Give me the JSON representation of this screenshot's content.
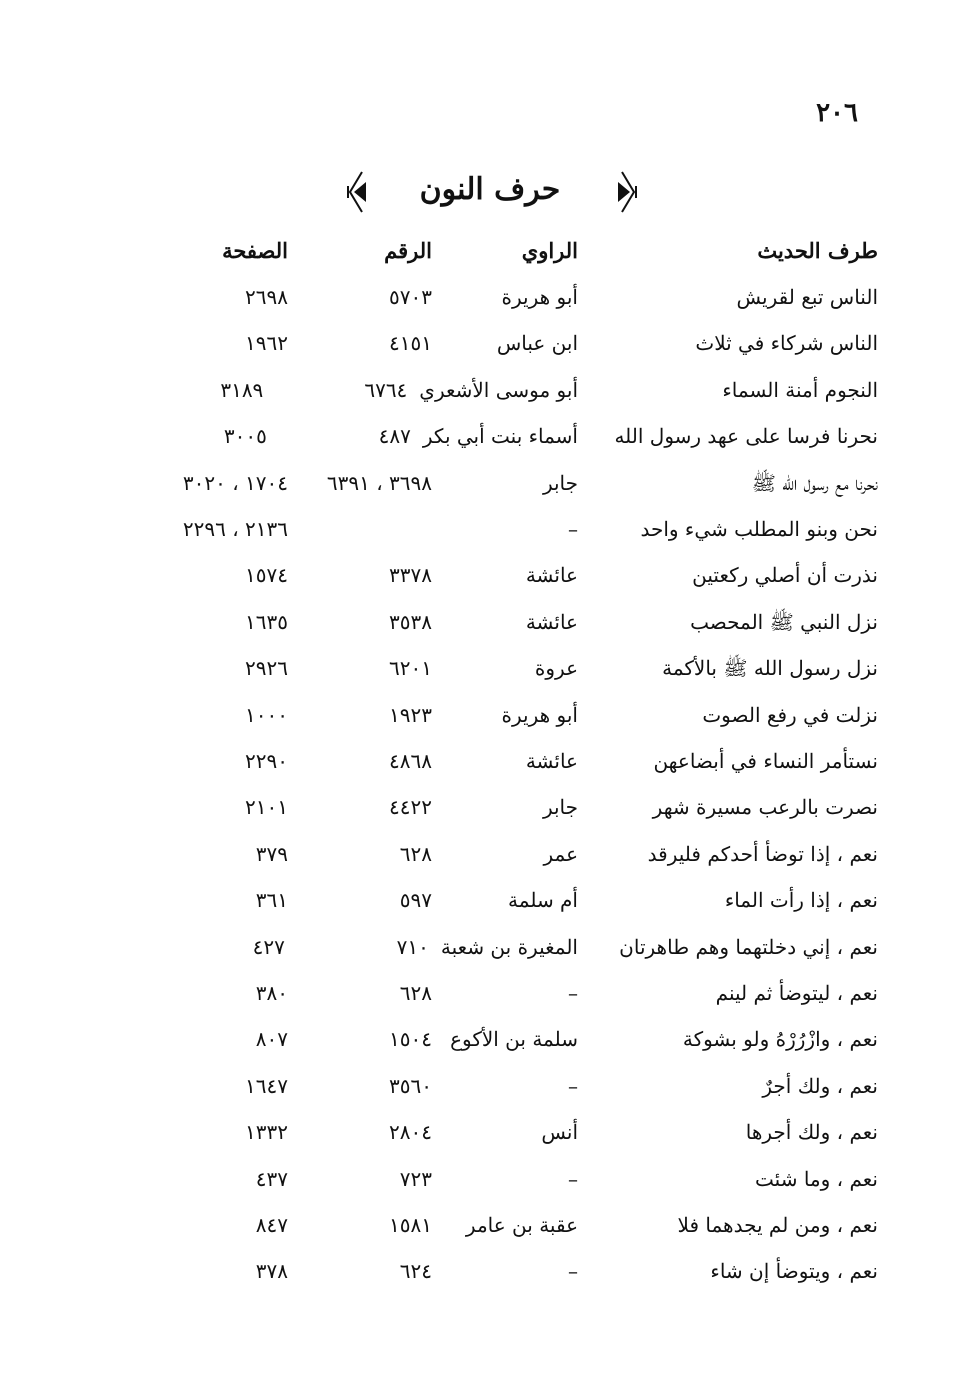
{
  "page_number": "٢٠٦",
  "section_title": "حرف النون",
  "headers": {
    "hadith": "طرف الحديث",
    "narrator": "الراوي",
    "number": "الرقم",
    "page": "الصفحة"
  },
  "rows": [
    {
      "hadith": "الناس تبع لقريش",
      "narrator": "أبو هريرة",
      "number": "٥٧٠٣",
      "page": "٢٦٩٨"
    },
    {
      "hadith": "الناس شركاء في ثلاث",
      "narrator": "ابن عباس",
      "number": "٤١٥١",
      "page": "١٩٦٢"
    },
    {
      "hadith": "النجوم أمنة السماء",
      "narrator": "أبو موسى الأشعري",
      "number": "٦٧٦٤",
      "page": "٣١٨٩"
    },
    {
      "hadith": "نحرنا فرسا على عهد رسول الله",
      "narrator": "أسماء بنت أبي بكر",
      "number": "٤٨٧",
      "page": "٣٠٠٥"
    },
    {
      "hadith": "نحرنا مع رسول الله ﷺ",
      "narrator": "جابر",
      "number": "٣٦٩٨ ، ٦٣٩١",
      "page": "١٧٠٤ ، ٣٠٢٠"
    },
    {
      "hadith": "نحن وبنو المطلب شيء واحد",
      "narrator": "–",
      "number": "",
      "page": "٢١٣٦ ، ٢٢٩٦"
    },
    {
      "hadith": "نذرت أن أصلي ركعتين",
      "narrator": "عائشة",
      "number": "٣٣٧٨",
      "page": "١٥٧٤"
    },
    {
      "hadith": "نزل النبي ﷺ المحصب",
      "narrator": "عائشة",
      "number": "٣٥٣٨",
      "page": "١٦٣٥"
    },
    {
      "hadith": "نزل رسول الله ﷺ بالأكمة",
      "narrator": "عروة",
      "number": "٦٢٠١",
      "page": "٢٩٢٦"
    },
    {
      "hadith": "نزلت في رفع الصوت",
      "narrator": "أبو هريرة",
      "number": "١٩٢٣",
      "page": "١٠٠٠"
    },
    {
      "hadith": "نستأمر النساء في أبضاعهن",
      "narrator": "عائشة",
      "number": "٤٨٦٨",
      "page": "٢٢٩٠"
    },
    {
      "hadith": "نصرت بالرعب مسيرة شهر",
      "narrator": "جابر",
      "number": "٤٤٢٢",
      "page": "٢١٠١"
    },
    {
      "hadith": "نعم ، إذا توضأ أحدكم فليرقد",
      "narrator": "عمر",
      "number": "٦٢٨",
      "page": "٣٧٩"
    },
    {
      "hadith": "نعم ، إذا رأت الماء",
      "narrator": "أم سلمة",
      "number": "٥٩٧",
      "page": "٣٦١"
    },
    {
      "hadith": "نعم ، إني دخلتهما وهم طاهرتان",
      "narrator": "المغيرة بن شعبة",
      "number": "٧١٠",
      "page": "٤٢٧"
    },
    {
      "hadith": "نعم ، ليتوضأ ثم لينم",
      "narrator": "–",
      "number": "٦٢٨",
      "page": "٣٨٠"
    },
    {
      "hadith": "نعم ، وازْرُرْهُ ولو بشوكة",
      "narrator": "سلمة بن الأكوع",
      "number": "١٥٠٤",
      "page": "٨٠٧"
    },
    {
      "hadith": "نعم ، ولك أجرٌ",
      "narrator": "–",
      "number": "٣٥٦٠",
      "page": "١٦٤٧"
    },
    {
      "hadith": "نعم ، ولك أجرها",
      "narrator": "أنس",
      "number": "٢٨٠٤",
      "page": "١٣٣٢"
    },
    {
      "hadith": "نعم ، وما شئت",
      "narrator": "–",
      "number": "٧٢٣",
      "page": "٤٣٧"
    },
    {
      "hadith": "نعم ، ومن لم يجدهما فلا",
      "narrator": "عقبة بن عامر",
      "number": "١٥٨١",
      "page": "٨٤٧"
    },
    {
      "hadith": "نعم ، ويتوضأ إن شاء",
      "narrator": "–",
      "number": "٦٢٤",
      "page": "٣٧٨"
    }
  ]
}
